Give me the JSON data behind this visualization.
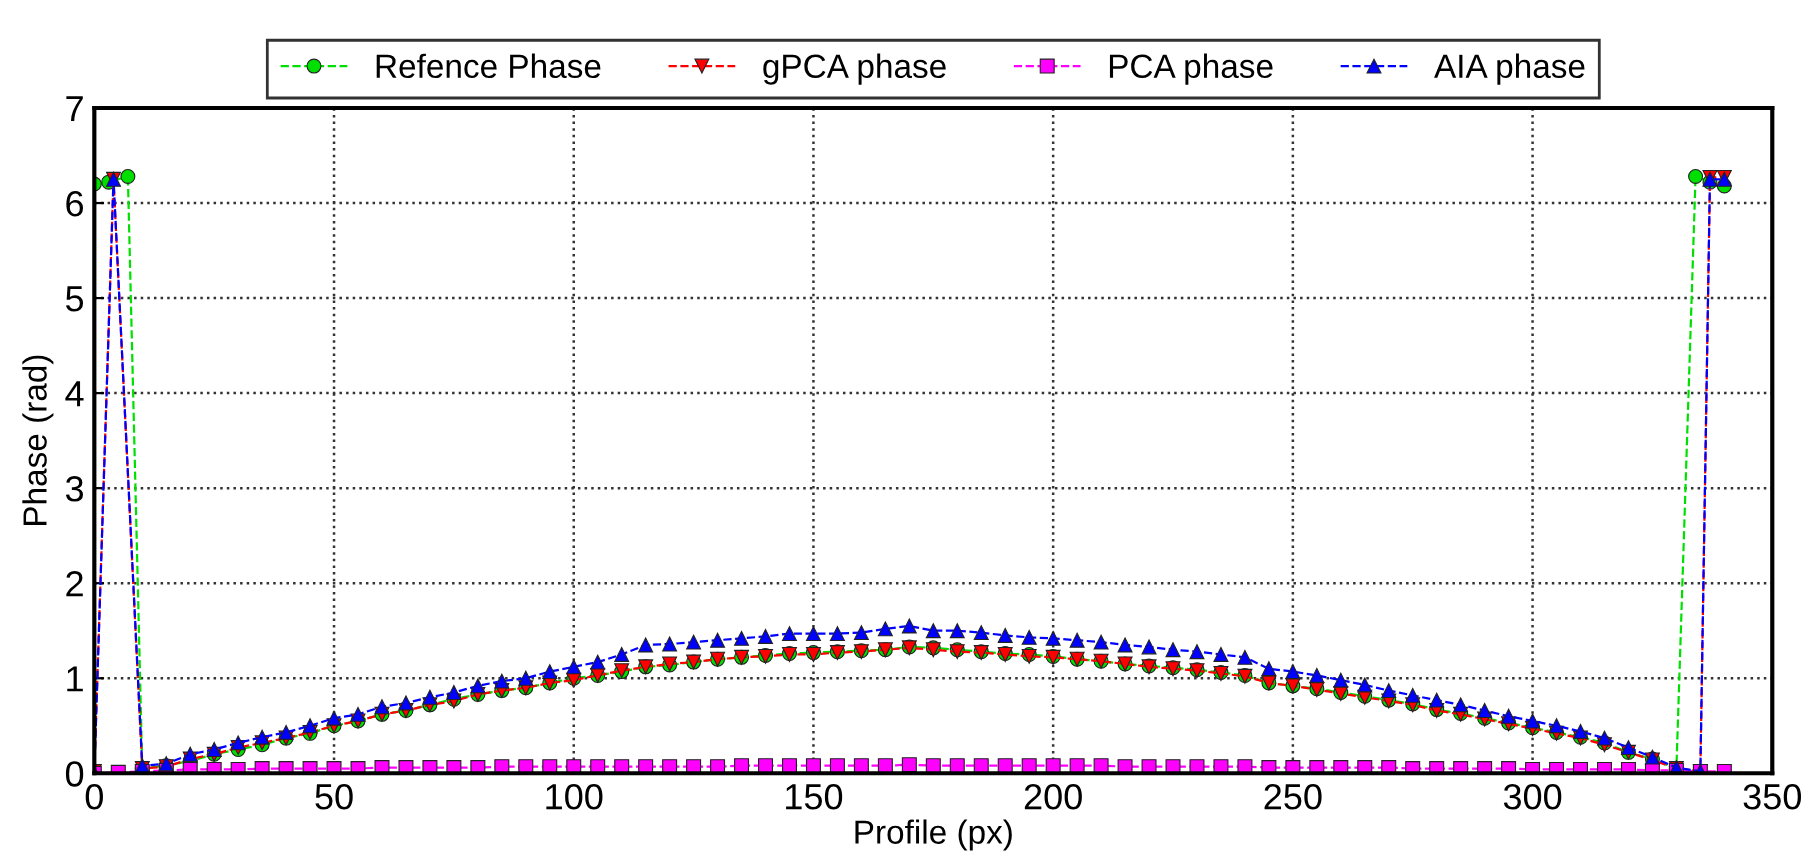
{
  "chart_data": {
    "type": "line",
    "xlabel": "Profile (px)",
    "ylabel": "Phase (rad)",
    "xlim": [
      0,
      350
    ],
    "ylim": [
      0,
      7
    ],
    "xticks": [
      0,
      50,
      100,
      150,
      200,
      250,
      300,
      350
    ],
    "yticks": [
      0,
      1,
      2,
      3,
      4,
      5,
      6,
      7
    ],
    "grid": true,
    "legend": "top",
    "line_style": "dashed",
    "series": [
      {
        "name": "Refence Phase",
        "color": "#00e000",
        "marker": "circle",
        "x": [
          0,
          3,
          7,
          10,
          15,
          20,
          25,
          30,
          35,
          40,
          45,
          50,
          55,
          60,
          65,
          70,
          75,
          80,
          85,
          90,
          95,
          100,
          105,
          110,
          115,
          120,
          125,
          130,
          135,
          140,
          145,
          150,
          155,
          160,
          165,
          170,
          175,
          180,
          185,
          190,
          195,
          200,
          205,
          210,
          215,
          220,
          225,
          230,
          235,
          240,
          245,
          250,
          255,
          260,
          265,
          270,
          275,
          280,
          285,
          290,
          295,
          300,
          305,
          310,
          315,
          320,
          325,
          330,
          334,
          337,
          340
        ],
        "values": [
          6.2,
          6.22,
          6.28,
          0.05,
          0.08,
          0.13,
          0.2,
          0.25,
          0.3,
          0.37,
          0.42,
          0.5,
          0.55,
          0.62,
          0.66,
          0.72,
          0.78,
          0.83,
          0.87,
          0.9,
          0.95,
          1.0,
          1.03,
          1.07,
          1.12,
          1.14,
          1.17,
          1.2,
          1.22,
          1.24,
          1.26,
          1.27,
          1.28,
          1.29,
          1.3,
          1.33,
          1.32,
          1.3,
          1.28,
          1.26,
          1.25,
          1.23,
          1.2,
          1.18,
          1.15,
          1.13,
          1.11,
          1.09,
          1.06,
          1.03,
          0.95,
          0.92,
          0.89,
          0.85,
          0.81,
          0.77,
          0.73,
          0.67,
          0.63,
          0.58,
          0.53,
          0.48,
          0.43,
          0.38,
          0.32,
          0.22,
          0.15,
          0.05,
          6.28,
          6.22,
          6.18
        ]
      },
      {
        "name": "gPCA phase",
        "color": "#ff0000",
        "marker": "triangle_down",
        "x": [
          0,
          4,
          10,
          15,
          20,
          25,
          30,
          35,
          40,
          45,
          50,
          55,
          60,
          65,
          70,
          75,
          80,
          85,
          90,
          95,
          100,
          105,
          110,
          115,
          120,
          125,
          130,
          135,
          140,
          145,
          150,
          155,
          160,
          165,
          170,
          175,
          180,
          185,
          190,
          195,
          200,
          205,
          210,
          215,
          220,
          225,
          230,
          235,
          240,
          245,
          250,
          255,
          260,
          265,
          270,
          275,
          280,
          285,
          290,
          295,
          300,
          305,
          310,
          315,
          320,
          325,
          330,
          335,
          337,
          340
        ],
        "values": [
          0.02,
          6.25,
          0.05,
          0.07,
          0.15,
          0.2,
          0.27,
          0.32,
          0.37,
          0.43,
          0.5,
          0.55,
          0.62,
          0.66,
          0.72,
          0.76,
          0.83,
          0.87,
          0.9,
          0.95,
          0.98,
          1.03,
          1.08,
          1.12,
          1.15,
          1.17,
          1.2,
          1.22,
          1.23,
          1.25,
          1.25,
          1.27,
          1.28,
          1.3,
          1.32,
          1.3,
          1.28,
          1.27,
          1.25,
          1.23,
          1.22,
          1.2,
          1.18,
          1.15,
          1.12,
          1.1,
          1.08,
          1.05,
          1.02,
          0.95,
          0.92,
          0.88,
          0.84,
          0.8,
          0.76,
          0.72,
          0.66,
          0.62,
          0.57,
          0.52,
          0.47,
          0.42,
          0.37,
          0.3,
          0.22,
          0.14,
          0.05,
          0.02,
          6.27,
          6.27
        ]
      },
      {
        "name": "PCA phase",
        "color": "#ff00ff",
        "marker": "square",
        "x": [
          0,
          5,
          10,
          15,
          20,
          25,
          30,
          35,
          40,
          45,
          50,
          55,
          60,
          65,
          70,
          75,
          80,
          85,
          90,
          95,
          100,
          105,
          110,
          115,
          120,
          125,
          130,
          135,
          140,
          145,
          150,
          155,
          160,
          165,
          170,
          175,
          180,
          185,
          190,
          195,
          200,
          205,
          210,
          215,
          220,
          225,
          230,
          235,
          240,
          245,
          250,
          255,
          260,
          265,
          270,
          275,
          280,
          285,
          290,
          295,
          300,
          305,
          310,
          315,
          320,
          325,
          330,
          335,
          340
        ],
        "values": [
          0.0,
          0.01,
          0.02,
          0.03,
          0.04,
          0.04,
          0.04,
          0.05,
          0.05,
          0.05,
          0.05,
          0.05,
          0.06,
          0.06,
          0.06,
          0.06,
          0.06,
          0.07,
          0.07,
          0.07,
          0.07,
          0.07,
          0.07,
          0.07,
          0.07,
          0.07,
          0.07,
          0.08,
          0.08,
          0.08,
          0.08,
          0.08,
          0.08,
          0.08,
          0.09,
          0.08,
          0.08,
          0.08,
          0.08,
          0.08,
          0.08,
          0.08,
          0.08,
          0.07,
          0.07,
          0.07,
          0.07,
          0.07,
          0.07,
          0.06,
          0.06,
          0.06,
          0.06,
          0.06,
          0.06,
          0.05,
          0.05,
          0.05,
          0.05,
          0.05,
          0.04,
          0.04,
          0.04,
          0.04,
          0.04,
          0.03,
          0.03,
          0.02,
          0.02
        ]
      },
      {
        "name": "AIA phase",
        "color": "#0000ff",
        "marker": "triangle",
        "x": [
          0,
          4,
          10,
          15,
          20,
          25,
          30,
          35,
          40,
          45,
          50,
          55,
          60,
          65,
          70,
          75,
          80,
          85,
          90,
          95,
          100,
          105,
          110,
          115,
          120,
          125,
          130,
          135,
          140,
          145,
          150,
          155,
          160,
          165,
          170,
          175,
          180,
          185,
          190,
          195,
          200,
          205,
          210,
          215,
          220,
          225,
          230,
          235,
          240,
          245,
          250,
          255,
          260,
          265,
          270,
          275,
          280,
          285,
          290,
          295,
          300,
          305,
          310,
          315,
          320,
          325,
          330,
          335,
          337,
          340
        ],
        "values": [
          0.0,
          6.25,
          0.08,
          0.1,
          0.2,
          0.25,
          0.32,
          0.38,
          0.43,
          0.5,
          0.58,
          0.62,
          0.7,
          0.74,
          0.8,
          0.85,
          0.92,
          0.97,
          1.0,
          1.07,
          1.12,
          1.17,
          1.25,
          1.35,
          1.36,
          1.38,
          1.4,
          1.42,
          1.44,
          1.47,
          1.47,
          1.47,
          1.48,
          1.52,
          1.55,
          1.5,
          1.5,
          1.48,
          1.45,
          1.43,
          1.42,
          1.4,
          1.38,
          1.35,
          1.33,
          1.3,
          1.28,
          1.25,
          1.22,
          1.1,
          1.07,
          1.03,
          0.98,
          0.93,
          0.87,
          0.82,
          0.77,
          0.72,
          0.66,
          0.6,
          0.55,
          0.5,
          0.44,
          0.37,
          0.27,
          0.17,
          0.06,
          0.02,
          6.25,
          6.25
        ]
      }
    ]
  }
}
